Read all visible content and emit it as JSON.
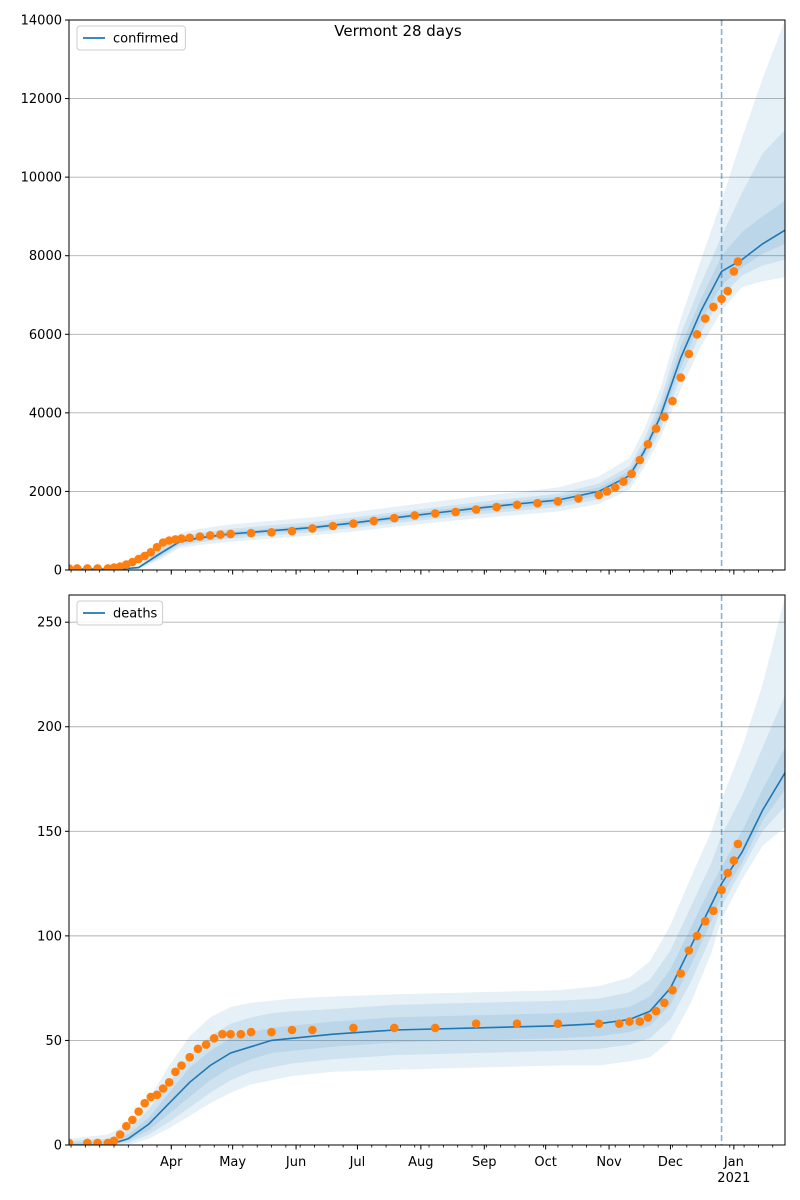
{
  "figure": {
    "title": "Vermont 28 days",
    "colors": {
      "model_line": "#1f77b4",
      "observed": "#ff7f0e",
      "band": "#1f77b4",
      "grid": "#b0b0b0",
      "vline": "#1f77b4"
    }
  },
  "chart_data": [
    {
      "type": "line",
      "panel": "top",
      "title": "Vermont 28 days",
      "xlabel": "",
      "ylabel": "",
      "ylim": [
        0,
        14000
      ],
      "yticks": [
        0,
        2000,
        4000,
        6000,
        8000,
        10000,
        12000,
        14000
      ],
      "x_axis": {
        "range_days_from_mar1": [
          -19,
          331
        ],
        "month_ticks": [
          {
            "label": "Apr",
            "day": 31
          },
          {
            "label": "May",
            "day": 61
          },
          {
            "label": "Jun",
            "day": 92
          },
          {
            "label": "Jul",
            "day": 122
          },
          {
            "label": "Aug",
            "day": 153
          },
          {
            "label": "Sep",
            "day": 184
          },
          {
            "label": "Oct",
            "day": 214
          },
          {
            "label": "Nov",
            "day": 245
          },
          {
            "label": "Dec",
            "day": 275
          },
          {
            "label": "Jan",
            "day": 306,
            "sub": "2021"
          }
        ]
      },
      "grid": "y",
      "legend": {
        "position": "top-left",
        "entries": [
          "confirmed"
        ]
      },
      "forecast_start_day": 300,
      "series": [
        {
          "name": "confirmed",
          "kind": "model",
          "x": [
            -19,
            5,
            15,
            25,
            35,
            45,
            60,
            80,
            100,
            120,
            140,
            160,
            180,
            200,
            220,
            240,
            255,
            262,
            270,
            280,
            290,
            300,
            310,
            320,
            331
          ],
          "y": [
            20,
            20,
            60,
            400,
            720,
            820,
            920,
            1000,
            1080,
            1200,
            1330,
            1450,
            1570,
            1680,
            1780,
            2000,
            2400,
            3000,
            3900,
            5400,
            6600,
            7600,
            7900,
            8300,
            8650
          ],
          "bands": [
            {
              "lo": [
                0,
                0,
                30,
                250,
                560,
                640,
                720,
                800,
                880,
                980,
                1100,
                1210,
                1310,
                1400,
                1490,
                1680,
                2050,
                2600,
                3350,
                4600,
                5700,
                6600,
                7200,
                7350,
                7450
              ],
              "hi": [
                50,
                60,
                110,
                560,
                930,
                1050,
                1160,
                1250,
                1340,
                1470,
                1610,
                1740,
                1870,
                1980,
                2100,
                2380,
                2850,
                3550,
                4600,
                6400,
                7900,
                9400,
                11000,
                12500,
                14000
              ]
            },
            {
              "lo": [
                5,
                5,
                40,
                300,
                620,
                710,
                800,
                880,
                960,
                1070,
                1190,
                1300,
                1410,
                1510,
                1600,
                1800,
                2180,
                2750,
                3550,
                4900,
                6050,
                6950,
                7500,
                7750,
                7900
              ],
              "hi": [
                40,
                40,
                90,
                500,
                840,
                950,
                1050,
                1140,
                1220,
                1340,
                1470,
                1590,
                1720,
                1830,
                1940,
                2200,
                2640,
                3300,
                4300,
                6000,
                7300,
                8500,
                9600,
                10600,
                11200
              ]
            },
            {
              "lo": [
                10,
                10,
                50,
                340,
                670,
                760,
                860,
                940,
                1020,
                1130,
                1260,
                1370,
                1490,
                1590,
                1690,
                1900,
                2300,
                2880,
                3730,
                5150,
                6350,
                7250,
                7700,
                8050,
                8300
              ],
              "hi": [
                30,
                30,
                75,
                460,
                780,
                880,
                980,
                1060,
                1140,
                1270,
                1400,
                1520,
                1640,
                1750,
                1860,
                2100,
                2520,
                3140,
                4100,
                5700,
                6900,
                8000,
                8600,
                9000,
                9400
              ]
            }
          ]
        },
        {
          "name": "observed",
          "kind": "points",
          "x": [
            -19,
            -15,
            -10,
            -5,
            0,
            3,
            6,
            9,
            12,
            15,
            18,
            21,
            24,
            27,
            30,
            33,
            36,
            40,
            45,
            50,
            55,
            60,
            70,
            80,
            90,
            100,
            110,
            120,
            130,
            140,
            150,
            160,
            170,
            180,
            190,
            200,
            210,
            220,
            230,
            240,
            244,
            248,
            252,
            256,
            260,
            264,
            268,
            272,
            276,
            280,
            284,
            288,
            292,
            296,
            300,
            303,
            306,
            308
          ],
          "y": [
            40,
            40,
            40,
            40,
            40,
            60,
            90,
            140,
            200,
            280,
            360,
            450,
            580,
            700,
            750,
            780,
            800,
            820,
            850,
            880,
            900,
            920,
            940,
            960,
            990,
            1060,
            1120,
            1180,
            1250,
            1320,
            1390,
            1440,
            1480,
            1540,
            1600,
            1660,
            1700,
            1750,
            1820,
            1910,
            2000,
            2100,
            2250,
            2450,
            2800,
            3200,
            3600,
            3900,
            4300,
            4900,
            5500,
            6000,
            6400,
            6700,
            6900,
            7100,
            7600,
            7850
          ]
        }
      ]
    },
    {
      "type": "line",
      "panel": "bottom",
      "title": "",
      "xlabel": "",
      "ylabel": "",
      "ylim": [
        0,
        263
      ],
      "yticks": [
        0,
        50,
        100,
        150,
        200,
        250
      ],
      "x_axis": {
        "range_days_from_mar1": [
          -19,
          331
        ],
        "month_ticks": [
          {
            "label": "Apr",
            "day": 31
          },
          {
            "label": "May",
            "day": 61
          },
          {
            "label": "Jun",
            "day": 92
          },
          {
            "label": "Jul",
            "day": 122
          },
          {
            "label": "Aug",
            "day": 153
          },
          {
            "label": "Sep",
            "day": 184
          },
          {
            "label": "Oct",
            "day": 214
          },
          {
            "label": "Nov",
            "day": 245
          },
          {
            "label": "Dec",
            "day": 275
          },
          {
            "label": "Jan",
            "day": 306,
            "sub": "2021"
          }
        ]
      },
      "grid": "y",
      "legend": {
        "position": "top-left",
        "entries": [
          "deaths"
        ]
      },
      "forecast_start_day": 300,
      "series": [
        {
          "name": "deaths",
          "kind": "model",
          "x": [
            -19,
            0,
            10,
            20,
            30,
            40,
            50,
            60,
            70,
            80,
            90,
            110,
            140,
            180,
            220,
            240,
            255,
            265,
            275,
            285,
            295,
            300,
            310,
            320,
            331
          ],
          "y": [
            0,
            0,
            3,
            10,
            20,
            30,
            38,
            44,
            47,
            50,
            51,
            53,
            55,
            56,
            57,
            58,
            60,
            64,
            75,
            95,
            115,
            125,
            140,
            160,
            178
          ],
          "bands": [
            {
              "lo": [
                0,
                0,
                0,
                3,
                8,
                14,
                20,
                25,
                29,
                31,
                33,
                35,
                36,
                37,
                38,
                38,
                40,
                42,
                50,
                68,
                92,
                108,
                127,
                143,
                152
              ],
              "hi": [
                3,
                5,
                10,
                22,
                38,
                52,
                61,
                66,
                68,
                69,
                70,
                71,
                72,
                73,
                74,
                76,
                80,
                88,
                105,
                128,
                150,
                165,
                190,
                220,
                262
              ]
            },
            {
              "lo": [
                0,
                0,
                1,
                5,
                11,
                18,
                25,
                31,
                35,
                37,
                39,
                41,
                43,
                44,
                45,
                46,
                48,
                51,
                60,
                78,
                100,
                114,
                132,
                150,
                162
              ],
              "hi": [
                2,
                3,
                7,
                17,
                30,
                43,
                52,
                58,
                61,
                63,
                64,
                65,
                67,
                68,
                69,
                70,
                73,
                79,
                93,
                114,
                135,
                148,
                167,
                190,
                215
              ]
            },
            {
              "lo": [
                0,
                0,
                2,
                7,
                15,
                23,
                31,
                37,
                41,
                44,
                45,
                47,
                49,
                50,
                51,
                52,
                54,
                57,
                67,
                86,
                107,
                119,
                135,
                155,
                170
              ],
              "hi": [
                1,
                2,
                5,
                13,
                25,
                37,
                45,
                51,
                54,
                56,
                57,
                59,
                61,
                62,
                63,
                64,
                66,
                71,
                84,
                104,
                124,
                133,
                150,
                170,
                190
              ]
            }
          ]
        },
        {
          "name": "observed",
          "kind": "points",
          "x": [
            -19,
            -10,
            -5,
            0,
            3,
            6,
            9,
            12,
            15,
            18,
            21,
            24,
            27,
            30,
            33,
            36,
            40,
            44,
            48,
            52,
            56,
            60,
            65,
            70,
            80,
            90,
            100,
            120,
            140,
            160,
            180,
            200,
            220,
            240,
            250,
            255,
            260,
            264,
            268,
            272,
            276,
            280,
            284,
            288,
            292,
            296,
            300,
            303,
            306,
            308
          ],
          "y": [
            1,
            1,
            1,
            1,
            2,
            5,
            9,
            12,
            16,
            20,
            23,
            24,
            27,
            30,
            35,
            38,
            42,
            46,
            48,
            51,
            53,
            53,
            53,
            54,
            54,
            55,
            55,
            56,
            56,
            56,
            58,
            58,
            58,
            58,
            58,
            59,
            59,
            61,
            64,
            68,
            74,
            82,
            93,
            100,
            107,
            112,
            122,
            130,
            136,
            144
          ]
        }
      ]
    }
  ]
}
